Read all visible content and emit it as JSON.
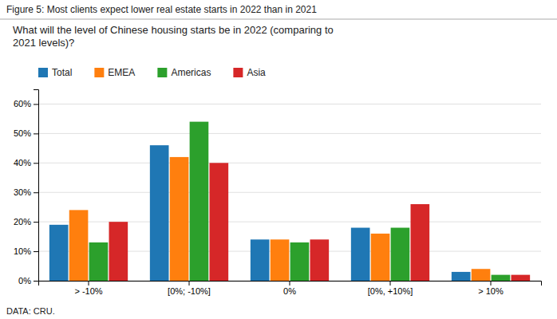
{
  "chart_data": {
    "type": "bar",
    "title": "Figure 5: Most clients expect lower real estate starts in 2022 than in 2021",
    "subtitle": "What will the level of Chinese housing starts be in 2022 (comparing to\n2021 levels)?",
    "annotations": [
      "DATA: CRU."
    ],
    "categories": [
      "> -10%",
      "[0%; -10%]",
      "0%",
      "[0%, +10%]",
      "> 10%"
    ],
    "series": [
      {
        "name": "Total",
        "values": [
          19,
          46,
          14,
          18,
          3
        ]
      },
      {
        "name": "EMEA",
        "values": [
          24,
          42,
          14,
          16,
          4
        ]
      },
      {
        "name": "Americas",
        "values": [
          13,
          54,
          13,
          18,
          2
        ]
      },
      {
        "name": "Asia",
        "values": [
          20,
          40,
          14,
          26,
          2
        ]
      }
    ],
    "ylim": [
      0,
      65
    ],
    "yticks": [
      {
        "value": 0,
        "label": "0%"
      },
      {
        "value": 10,
        "label": "10%"
      },
      {
        "value": 20,
        "label": "20%"
      },
      {
        "value": 30,
        "label": "30%"
      },
      {
        "value": 40,
        "label": "40%"
      },
      {
        "value": 50,
        "label": "50%"
      },
      {
        "value": 60,
        "label": "60%"
      }
    ],
    "grid": true,
    "legend": "top"
  }
}
